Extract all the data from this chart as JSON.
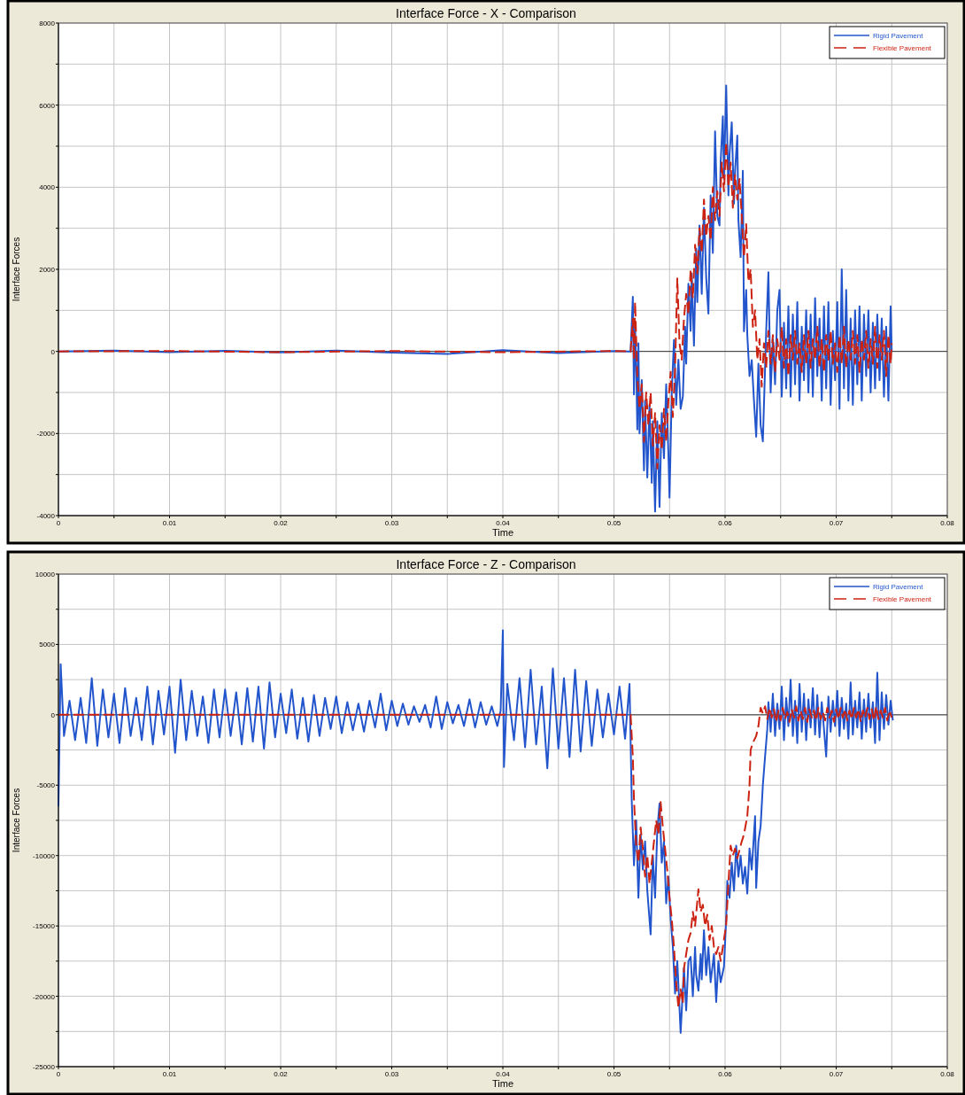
{
  "chart_data": [
    {
      "type": "line",
      "title": "Interface Force - X - Comparison",
      "xlabel": "Time",
      "ylabel": "Interface Forces",
      "xlim": [
        0,
        0.08
      ],
      "xticks": [
        0,
        {
          "value": 0.005,
          "label": null
        },
        0.01,
        {
          "value": 0.015,
          "label": null
        },
        0.02,
        {
          "value": 0.025,
          "label": null
        },
        0.03,
        {
          "value": 0.035,
          "label": null
        },
        0.04,
        {
          "value": 0.045,
          "label": null
        },
        0.05,
        {
          "value": 0.055,
          "label": null
        },
        0.06,
        {
          "value": 0.065,
          "label": null
        },
        0.07,
        {
          "value": 0.075,
          "label": null
        },
        0.08
      ],
      "ylim": [
        -4000,
        8000
      ],
      "yticks": [
        -4000,
        {
          "value": -3000,
          "label": null
        },
        -2000,
        {
          "value": -1000,
          "label": null
        },
        0,
        {
          "value": 1000,
          "label": null
        },
        2000,
        {
          "value": 3000,
          "label": null
        },
        4000,
        {
          "value": 5000,
          "label": null
        },
        6000,
        {
          "value": 7000,
          "label": null
        },
        8000
      ],
      "grid": true,
      "legend": "top right",
      "ref_lines": [
        {
          "axis": "y",
          "value": 0,
          "color": "#333333"
        }
      ],
      "series": [
        {
          "name": "Rigid Pavement",
          "color": "#2255cc",
          "line_style": "solid",
          "x": [
            0,
            0.005,
            0.01,
            0.015,
            0.02,
            0.025,
            0.03,
            0.035,
            0.04,
            0.045,
            0.05,
            0.0514,
            0.0515,
            0.0517,
            0.0518,
            0.0519,
            0.052,
            0.0521,
            0.0522,
            0.0523,
            0.0525,
            0.0527,
            0.0528,
            0.053,
            0.0532,
            0.0534,
            0.0535,
            0.0537,
            0.0539,
            0.0541,
            0.0543,
            0.0545,
            0.0547,
            0.0549,
            0.055,
            0.0552,
            0.0554,
            0.0556,
            0.0558,
            0.056,
            0.0562,
            0.0564,
            0.0565,
            0.0567,
            0.0569,
            0.057,
            0.0572,
            0.0574,
            0.0575,
            0.0577,
            0.0579,
            0.0581,
            0.0583,
            0.0585,
            0.0587,
            0.0589,
            0.0591,
            0.0593,
            0.0595,
            0.0596,
            0.0598,
            0.0599,
            0.0601,
            0.0603,
            0.0604,
            0.0606,
            0.0608,
            0.0609,
            0.0611,
            0.0612,
            0.0614,
            0.0616,
            0.0617,
            0.0619,
            0.062,
            0.0622,
            0.0624,
            0.0626,
            0.0628,
            0.063,
            0.0632,
            0.0634,
            0.0636,
            0.0637,
            0.0639,
            0.0641,
            0.0643,
            0.0645,
            0.0647,
            0.0649,
            0.0651,
            0.0653,
            0.0655,
            0.0657,
            0.0659,
            0.0661,
            0.0663,
            0.0665,
            0.0667,
            0.0669,
            0.0671,
            0.0673,
            0.0675,
            0.0677,
            0.0679,
            0.0681,
            0.0683,
            0.0685,
            0.0687,
            0.0689,
            0.0691,
            0.0693,
            0.0695,
            0.0697,
            0.0699,
            0.0701,
            0.0703,
            0.0705,
            0.0707,
            0.0709,
            0.0711,
            0.0713,
            0.0715,
            0.0717,
            0.0719,
            0.0721,
            0.0723,
            0.0725,
            0.0727,
            0.0729,
            0.0731,
            0.0733,
            0.0735,
            0.0737,
            0.0739,
            0.0741,
            0.0743,
            0.0745,
            0.0747,
            0.0749,
            0.075
          ],
          "values": [
            0,
            20,
            -20,
            15,
            -25,
            20,
            -30,
            -60,
            30,
            -40,
            10,
            0,
            0,
            1330,
            -1050,
            600,
            -300,
            -1900,
            200,
            -2000,
            -700,
            -2900,
            -1200,
            -3070,
            -1300,
            -3200,
            -1700,
            -3900,
            -1700,
            -3790,
            -1500,
            -2600,
            -800,
            -2500,
            -3560,
            -1000,
            280,
            -1300,
            -200,
            -1400,
            -1100,
            600,
            -300,
            1650,
            500,
            1900,
            140,
            2500,
            1200,
            3070,
            1400,
            3500,
            1800,
            920,
            3800,
            2400,
            5360,
            3300,
            3070,
            4600,
            5730,
            4200,
            6480,
            3800,
            4800,
            5580,
            3600,
            4400,
            5260,
            3200,
            2300,
            4400,
            490,
            1500,
            400,
            -600,
            -210,
            -1200,
            -2080,
            -300,
            -1800,
            -2190,
            -400,
            500,
            1930,
            -1000,
            300,
            -800,
            1000,
            1500,
            -1100,
            700,
            -900,
            1100,
            -1100,
            900,
            -800,
            1200,
            -1200,
            600,
            -700,
            1000,
            -1000,
            900,
            -1100,
            1300,
            -600,
            800,
            -1200,
            1100,
            -900,
            1200,
            -1300,
            500,
            -700,
            1200,
            -1400,
            2000,
            -900,
            1500,
            -1200,
            800,
            -1300,
            1000,
            -800,
            1100,
            -1200,
            900,
            -600,
            1000,
            -1000,
            700,
            -900,
            900,
            -700,
            800,
            -1100,
            600,
            -1200,
            1100,
            0
          ]
        },
        {
          "name": "Flexible Pavement",
          "color": "#cc2211",
          "line_style": "dashed",
          "x": [
            0,
            0.01,
            0.02,
            0.03,
            0.04,
            0.05,
            0.0514,
            0.0515,
            0.0517,
            0.0518,
            0.0519,
            0.0521,
            0.0523,
            0.0525,
            0.0527,
            0.0529,
            0.0531,
            0.0533,
            0.0535,
            0.0537,
            0.0539,
            0.0541,
            0.0543,
            0.0545,
            0.0547,
            0.0549,
            0.0551,
            0.0553,
            0.0555,
            0.0557,
            0.0559,
            0.0561,
            0.0563,
            0.0565,
            0.0567,
            0.0569,
            0.0571,
            0.0573,
            0.0575,
            0.0577,
            0.0579,
            0.0581,
            0.0583,
            0.0585,
            0.0587,
            0.0589,
            0.0591,
            0.0593,
            0.0595,
            0.0597,
            0.0599,
            0.0601,
            0.0603,
            0.0605,
            0.0607,
            0.0609,
            0.0611,
            0.0613,
            0.0615,
            0.0617,
            0.0619,
            0.0621,
            0.0623,
            0.0625,
            0.0627,
            0.0629,
            0.0631,
            0.0633,
            0.0635,
            0.0637,
            0.0639,
            0.0641,
            0.0643,
            0.0645,
            0.0647,
            0.0649,
            0.0651,
            0.0653,
            0.0655,
            0.0657,
            0.0659,
            0.0661,
            0.0663,
            0.0665,
            0.0667,
            0.0669,
            0.0671,
            0.0673,
            0.0675,
            0.0677,
            0.0679,
            0.0681,
            0.0683,
            0.0685,
            0.0687,
            0.0689,
            0.0691,
            0.0693,
            0.0695,
            0.0697,
            0.0699,
            0.0701,
            0.0703,
            0.0705,
            0.0707,
            0.0709,
            0.0711,
            0.0713,
            0.0715,
            0.0717,
            0.0719,
            0.0721,
            0.0723,
            0.0725,
            0.0727,
            0.0729,
            0.0731,
            0.0733,
            0.0735,
            0.0737,
            0.0739,
            0.0741,
            0.0743,
            0.0745,
            0.0747,
            0.0749,
            0.075
          ],
          "values": [
            0,
            10,
            -20,
            10,
            -20,
            10,
            0,
            0,
            800,
            -200,
            1200,
            -600,
            -1400,
            -800,
            -2200,
            -1000,
            -1800,
            -1000,
            -2300,
            -1500,
            -2850,
            -1800,
            -2400,
            -1400,
            -2200,
            -1200,
            -500,
            -1600,
            -400,
            1780,
            200,
            -200,
            800,
            1400,
            900,
            2000,
            1300,
            2600,
            1900,
            3000,
            2400,
            3700,
            2800,
            3300,
            2700,
            4000,
            3200,
            3900,
            3300,
            4600,
            3900,
            5100,
            4000,
            4600,
            3500,
            4300,
            3700,
            4200,
            3300,
            2300,
            3100,
            1700,
            2000,
            600,
            1000,
            -200,
            300,
            -860,
            200,
            -400,
            500,
            -300,
            400,
            -500,
            300,
            -200,
            600,
            -400,
            300,
            -600,
            400,
            -200,
            500,
            -300,
            200,
            -500,
            400,
            -300,
            500,
            -400,
            300,
            -200,
            600,
            -400,
            300,
            -500,
            400,
            -200,
            500,
            -300,
            200,
            -500,
            400,
            -300,
            600,
            -400,
            300,
            -200,
            500,
            -300,
            400,
            -500,
            300,
            -200,
            500,
            -400,
            300,
            -300,
            600,
            -400,
            400,
            -200,
            500,
            -600,
            400,
            -300,
            200
          ]
        }
      ]
    },
    {
      "type": "line",
      "title": "Interface Force - Z - Comparison",
      "xlabel": "Time",
      "ylabel": "Interface Forces",
      "xlim": [
        0,
        0.08
      ],
      "xticks": [
        0,
        {
          "value": 0.005,
          "label": null
        },
        0.01,
        {
          "value": 0.015,
          "label": null
        },
        0.02,
        {
          "value": 0.025,
          "label": null
        },
        0.03,
        {
          "value": 0.035,
          "label": null
        },
        0.04,
        {
          "value": 0.045,
          "label": null
        },
        0.05,
        {
          "value": 0.055,
          "label": null
        },
        0.06,
        {
          "value": 0.065,
          "label": null
        },
        0.07,
        {
          "value": 0.075,
          "label": null
        },
        0.08
      ],
      "ylim": [
        -25000,
        10000
      ],
      "yticks": [
        -25000,
        {
          "value": -22500,
          "label": null
        },
        -20000,
        {
          "value": -17500,
          "label": null
        },
        -15000,
        {
          "value": -12500,
          "label": null
        },
        -10000,
        {
          "value": -7500,
          "label": null
        },
        -5000,
        {
          "value": -2500,
          "label": null
        },
        0,
        {
          "value": 2500,
          "label": null
        },
        5000,
        {
          "value": 7500,
          "label": null
        },
        10000
      ],
      "grid": true,
      "legend": "top right",
      "ref_lines": [
        {
          "axis": "y",
          "value": 0,
          "color": "#333333"
        }
      ],
      "series": [
        {
          "name": "Rigid Pavement",
          "color": "#2255cc",
          "line_style": "solid",
          "x": [
            0,
            0.0002,
            0.0005,
            0.001,
            0.0015,
            0.002,
            0.0025,
            0.003,
            0.0035,
            0.004,
            0.0045,
            0.005,
            0.0055,
            0.006,
            0.0065,
            0.007,
            0.0075,
            0.008,
            0.0085,
            0.009,
            0.0095,
            0.01,
            0.0105,
            0.011,
            0.0115,
            0.012,
            0.0125,
            0.013,
            0.0135,
            0.014,
            0.0145,
            0.015,
            0.0155,
            0.016,
            0.0165,
            0.017,
            0.0175,
            0.018,
            0.0185,
            0.019,
            0.0195,
            0.02,
            0.0205,
            0.021,
            0.0215,
            0.022,
            0.0225,
            0.023,
            0.0235,
            0.024,
            0.0245,
            0.025,
            0.0255,
            0.026,
            0.0265,
            0.027,
            0.0275,
            0.028,
            0.0285,
            0.029,
            0.0295,
            0.03,
            0.0305,
            0.031,
            0.0315,
            0.032,
            0.0325,
            0.033,
            0.0335,
            0.034,
            0.0345,
            0.035,
            0.0355,
            0.036,
            0.0365,
            0.037,
            0.0375,
            0.038,
            0.0385,
            0.039,
            0.0395,
            0.0398,
            0.04,
            0.0401,
            0.0404,
            0.041,
            0.0415,
            0.042,
            0.0425,
            0.043,
            0.0435,
            0.044,
            0.0445,
            0.045,
            0.0455,
            0.046,
            0.0465,
            0.047,
            0.0475,
            0.048,
            0.0485,
            0.049,
            0.0495,
            0.05,
            0.0505,
            0.051,
            0.0514,
            0.0516,
            0.0518,
            0.052,
            0.0522,
            0.0524,
            0.0526,
            0.0528,
            0.053,
            0.0533,
            0.0535,
            0.0537,
            0.0539,
            0.0541,
            0.0543,
            0.0545,
            0.0547,
            0.0549,
            0.0551,
            0.0553,
            0.0555,
            0.0557,
            0.056,
            0.0562,
            0.0563,
            0.0565,
            0.0567,
            0.0569,
            0.0571,
            0.0573,
            0.0574,
            0.0576,
            0.0578,
            0.0579,
            0.0581,
            0.0583,
            0.0585,
            0.0587,
            0.059,
            0.0592,
            0.0594,
            0.0596,
            0.0599,
            0.0601,
            0.0602,
            0.0604,
            0.0606,
            0.0608,
            0.061,
            0.0612,
            0.0614,
            0.0616,
            0.0618,
            0.062,
            0.0622,
            0.0624,
            0.0626,
            0.0627,
            0.0628,
            0.063,
            0.0632,
            0.0634,
            0.0636,
            0.0638,
            0.0639,
            0.0641,
            0.0643,
            0.0645,
            0.0647,
            0.0649,
            0.0651,
            0.0653,
            0.0655,
            0.0657,
            0.0659,
            0.0661,
            0.0663,
            0.0665,
            0.0667,
            0.0669,
            0.0671,
            0.0673,
            0.0675,
            0.0677,
            0.0679,
            0.0681,
            0.0683,
            0.0685,
            0.0687,
            0.0689,
            0.0691,
            0.0693,
            0.0695,
            0.0697,
            0.0699,
            0.0701,
            0.0703,
            0.0705,
            0.0707,
            0.0709,
            0.0711,
            0.0713,
            0.0715,
            0.0717,
            0.0719,
            0.0721,
            0.0723,
            0.0725,
            0.0727,
            0.0729,
            0.0731,
            0.0733,
            0.0735,
            0.0737,
            0.0739,
            0.0741,
            0.0743,
            0.0745,
            0.0747,
            0.0749,
            0.0751
          ],
          "values": [
            -6500,
            3600,
            -1500,
            1000,
            -1800,
            1200,
            -2000,
            2600,
            -2200,
            1800,
            -1600,
            1500,
            -2000,
            1900,
            -1500,
            1200,
            -1800,
            2000,
            -2100,
            1700,
            -1400,
            2000,
            -2700,
            2500,
            -1800,
            1700,
            -1500,
            1300,
            -2000,
            1800,
            -1600,
            1800,
            -1500,
            1600,
            -2100,
            1900,
            -1900,
            2000,
            -2400,
            2300,
            -1600,
            1500,
            -1300,
            1800,
            -1700,
            1200,
            -1900,
            1400,
            -1500,
            1200,
            -1000,
            1300,
            -1300,
            900,
            -1100,
            800,
            -1200,
            1000,
            -900,
            1500,
            -1100,
            1000,
            -800,
            800,
            -700,
            600,
            -500,
            700,
            -900,
            1300,
            -1000,
            900,
            -600,
            700,
            -800,
            1100,
            -900,
            900,
            -700,
            600,
            -800,
            300,
            6000,
            -3700,
            2200,
            -1800,
            2600,
            -2300,
            3200,
            -2100,
            2000,
            -3800,
            3300,
            -2400,
            2600,
            -3000,
            3200,
            -2600,
            2400,
            -2200,
            1800,
            -1600,
            1500,
            -1400,
            2000,
            -1700,
            2200,
            -6100,
            -10700,
            -7500,
            -13000,
            -8500,
            -11000,
            -9000,
            -12500,
            -15600,
            -10000,
            -13000,
            -8200,
            -6300,
            -10500,
            -9000,
            -13400,
            -11500,
            -14500,
            -16500,
            -19800,
            -17500,
            -22600,
            -19500,
            -18000,
            -21000,
            -17500,
            -17200,
            -20000,
            -16500,
            -18500,
            -19600,
            -17000,
            -18800,
            -15300,
            -18500,
            -16500,
            -19000,
            -17000,
            -20400,
            -17500,
            -19000,
            -17900,
            -14500,
            -11800,
            -13000,
            -10500,
            -12500,
            -9300,
            -11500,
            -10000,
            -12000,
            -10800,
            -12700,
            -9500,
            -11000,
            -8500,
            -7200,
            -12300,
            -9000,
            -7900,
            -5000,
            -2960,
            -1000,
            900,
            -1200,
            1500,
            -1500,
            800,
            -1000,
            2000,
            -1800,
            1200,
            -800,
            2500,
            -1500,
            1000,
            -2000,
            2200,
            -1200,
            1500,
            -1800,
            1100,
            -900,
            1900,
            -1400,
            1400,
            -1600,
            900,
            -1000,
            -2960,
            1300,
            -1200,
            1000,
            -800,
            1700,
            -1500,
            1200,
            -1000,
            800,
            -1700,
            2300,
            -1400,
            1000,
            -900,
            1600,
            -1700,
            1100,
            -1200,
            1500,
            -900,
            900,
            -2000,
            3000,
            -1800,
            1600,
            -1000,
            1400,
            -700,
            1000,
            -400
          ]
        },
        {
          "name": "Flexible Pavement",
          "color": "#cc2211",
          "line_style": "dashed",
          "x": [
            0,
            0.01,
            0.02,
            0.03,
            0.04,
            0.05,
            0.0515,
            0.0517,
            0.0518,
            0.052,
            0.0522,
            0.0524,
            0.0526,
            0.0528,
            0.053,
            0.0532,
            0.0534,
            0.0536,
            0.0538,
            0.054,
            0.0542,
            0.0544,
            0.0546,
            0.0548,
            0.055,
            0.0552,
            0.0554,
            0.0556,
            0.0558,
            0.056,
            0.0562,
            0.0563,
            0.0565,
            0.0567,
            0.0569,
            0.0571,
            0.0573,
            0.0576,
            0.0578,
            0.058,
            0.0582,
            0.0584,
            0.0586,
            0.0588,
            0.059,
            0.0592,
            0.0594,
            0.0596,
            0.0598,
            0.0601,
            0.0603,
            0.0605,
            0.0607,
            0.0609,
            0.0611,
            0.0613,
            0.0615,
            0.0617,
            0.062,
            0.0622,
            0.0623,
            0.0625,
            0.0628,
            0.063,
            0.0632,
            0.0634,
            0.0636,
            0.0638,
            0.064,
            0.0642,
            0.0644,
            0.0646,
            0.0648,
            0.065,
            0.0652,
            0.0654,
            0.0656,
            0.0658,
            0.066,
            0.0662,
            0.0664,
            0.0666,
            0.0668,
            0.067,
            0.0672,
            0.0674,
            0.0676,
            0.0678,
            0.068,
            0.0682,
            0.0684,
            0.0686,
            0.0688,
            0.069,
            0.0692,
            0.0694,
            0.0696,
            0.0698,
            0.07,
            0.0702,
            0.0704,
            0.0706,
            0.0708,
            0.071,
            0.0712,
            0.0714,
            0.0716,
            0.0718,
            0.072,
            0.0722,
            0.0724,
            0.0726,
            0.0728,
            0.073,
            0.0732,
            0.0734,
            0.0736,
            0.0738,
            0.074,
            0.0742,
            0.0744,
            0.0746,
            0.0748,
            0.075
          ],
          "values": [
            0,
            0,
            0,
            0,
            0,
            0,
            0,
            -3000,
            -6000,
            -9260,
            -10500,
            -8000,
            -9500,
            -11500,
            -10000,
            -12000,
            -10500,
            -9000,
            -7500,
            -8500,
            -6200,
            -8000,
            -9500,
            -11100,
            -13000,
            -14500,
            -16500,
            -19000,
            -20800,
            -19500,
            -20500,
            -18000,
            -17000,
            -16000,
            -15500,
            -14000,
            -15000,
            -12400,
            -14000,
            -13500,
            -15000,
            -14200,
            -16000,
            -15000,
            -16500,
            -17000,
            -16500,
            -17500,
            -16500,
            -14900,
            -12000,
            -9300,
            -10000,
            -9500,
            -10200,
            -9600,
            -9000,
            -8500,
            -7200,
            -5000,
            -2500,
            -2000,
            -1500,
            -800,
            500,
            100,
            600,
            -300,
            500,
            -200,
            400,
            -500,
            300,
            -400,
            500,
            -300,
            200,
            -500,
            400,
            -200,
            600,
            -400,
            300,
            -300,
            500,
            -500,
            400,
            -200,
            300,
            -400,
            500,
            -300,
            200,
            -400,
            500,
            -200,
            300,
            -500,
            400,
            -300,
            500,
            -200,
            400,
            -400,
            300,
            -300,
            500,
            -200,
            400,
            -500,
            300,
            -200,
            500,
            -300,
            400,
            -400,
            600,
            -300,
            300,
            -200,
            500,
            -400,
            300,
            -200
          ]
        }
      ]
    }
  ]
}
